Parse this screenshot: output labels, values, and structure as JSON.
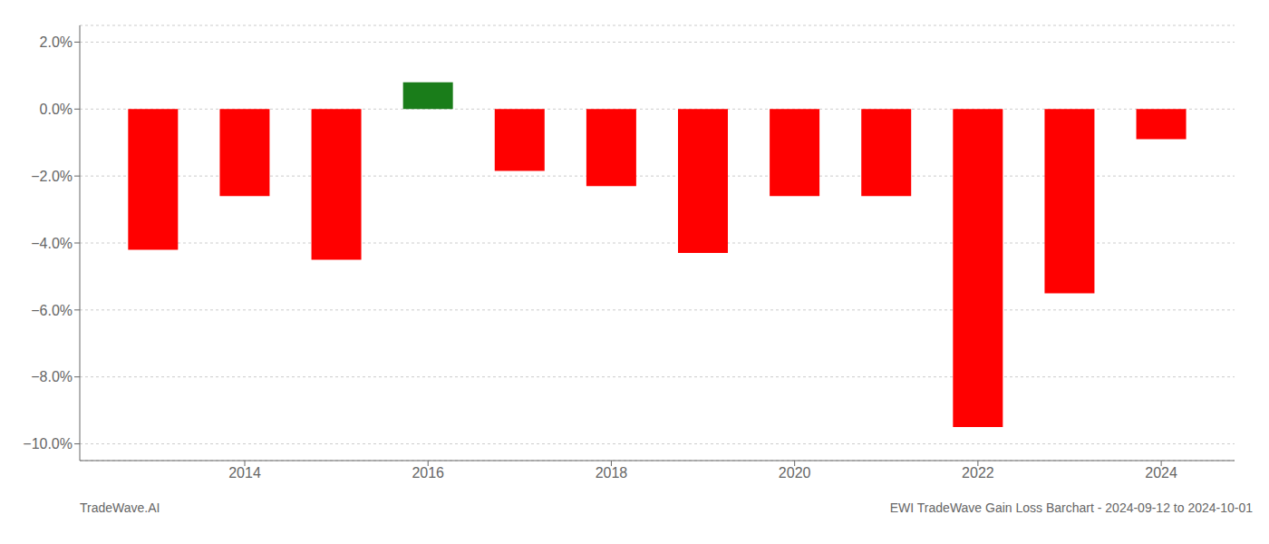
{
  "chart_data": {
    "type": "bar",
    "x": [
      2013,
      2014,
      2015,
      2016,
      2017,
      2018,
      2019,
      2020,
      2021,
      2022,
      2023,
      2024
    ],
    "values": [
      -4.2,
      -2.6,
      -4.5,
      0.8,
      -1.85,
      -2.3,
      -4.3,
      -2.6,
      -2.6,
      -9.5,
      -5.5,
      -0.9
    ],
    "colors": [
      "#ff0000",
      "#ff0000",
      "#ff0000",
      "#1a7d1a",
      "#ff0000",
      "#ff0000",
      "#ff0000",
      "#ff0000",
      "#ff0000",
      "#ff0000",
      "#ff0000",
      "#ff0000"
    ],
    "xlim": [
      2012.2,
      2024.8
    ],
    "xticks": [
      2014,
      2016,
      2018,
      2020,
      2022,
      2024
    ],
    "ylim": [
      -10.5,
      2.5
    ],
    "yticks": [
      {
        "value": 2.0,
        "label": "2.0%"
      },
      {
        "value": 0.0,
        "label": "0.0%"
      },
      {
        "value": -2.0,
        "label": "−2.0%"
      },
      {
        "value": -4.0,
        "label": "−4.0%"
      },
      {
        "value": -6.0,
        "label": "−6.0%"
      },
      {
        "value": -8.0,
        "label": "−8.0%"
      },
      {
        "value": -10.0,
        "label": "−10.0%"
      }
    ],
    "grid": true,
    "annotations": [
      "TradeWave.AI",
      "EWI TradeWave Gain Loss Barchart - 2024-09-12 to 2024-10-01"
    ]
  }
}
